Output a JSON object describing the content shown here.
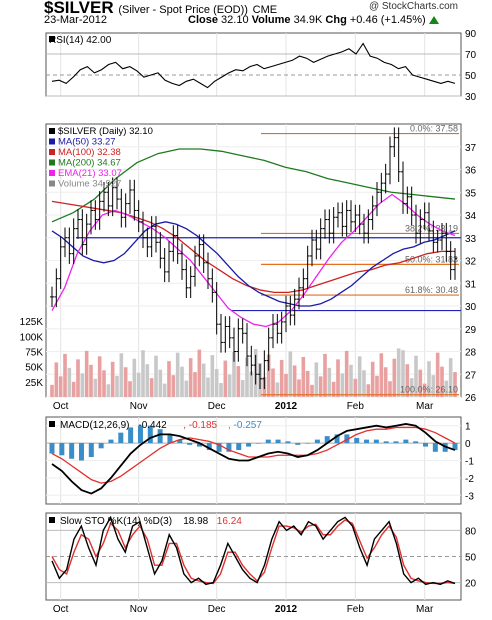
{
  "header": {
    "symbol": "$SILVER",
    "subtitle": "(Silver - Spot Price (EOD))",
    "exchange": "CME",
    "date": "23-Mar-2012",
    "close_label": "Close",
    "close_value": "32.10",
    "volume_label": "Volume",
    "volume_value": "34.9K",
    "chg_label": "Chg",
    "chg_value": "+0.46 (+1.45%)",
    "brand": "@ StockCharts.com"
  },
  "colors": {
    "price_bars": "#000000",
    "ma50": "#1a1aa8",
    "ma100": "#cc2222",
    "ma200": "#1f7a1f",
    "ema21": "#ee22ee",
    "volume_up": "#e8a0a0",
    "volume_down": "#c8c8c8",
    "fib": "#e07020",
    "support": "#2222bb",
    "macd_line": "#000000",
    "macd_signal": "#e03030",
    "macd_hist": "#3a8ec8"
  },
  "chart_data": [
    {
      "type": "line",
      "panel": "rsi",
      "legend": "RSI(14) 42.00",
      "ylim": [
        30,
        90
      ],
      "yticks": [
        30,
        50,
        70,
        90
      ],
      "reference_lines": [
        30,
        50,
        70
      ],
      "series": [
        {
          "values": [
            44,
            45,
            42,
            48,
            55,
            58,
            52,
            55,
            60,
            62,
            56,
            58,
            54,
            48,
            50,
            52,
            45,
            42,
            40,
            44,
            46,
            42,
            38,
            44,
            48,
            52,
            55,
            54,
            58,
            60,
            56,
            58,
            60,
            62,
            64,
            68,
            66,
            62,
            65,
            68,
            70,
            72,
            75,
            70,
            80,
            68,
            66,
            62,
            60,
            56,
            58,
            50,
            48,
            46,
            44,
            42,
            44,
            42
          ]
        }
      ]
    },
    {
      "type": "candlestick",
      "panel": "price",
      "legend": [
        {
          "label": "$SILVER (Daily) 32.10",
          "color": "#000000"
        },
        {
          "label": "MA(50) 33.27",
          "color": "#1a1aa8"
        },
        {
          "label": "MA(100) 32.38",
          "color": "#cc2222"
        },
        {
          "label": "MA(200) 34.67",
          "color": "#1f7a1f"
        },
        {
          "label": "EMA(21) 33.07",
          "color": "#ee22ee"
        },
        {
          "label": "Volume 34,927",
          "color": "#888888"
        }
      ],
      "ylim": [
        26,
        38
      ],
      "yticks": [
        26,
        27,
        28,
        29,
        30,
        31,
        32,
        33,
        34,
        35,
        36,
        37
      ],
      "x_tick_labels": [
        "Oct",
        "Nov",
        "Dec",
        "2012",
        "Feb",
        "Mar"
      ],
      "x_tick_bars": [
        2,
        20,
        38,
        54,
        70,
        86
      ],
      "volume_ticks": [
        "125K",
        "100K",
        "75K",
        "50K",
        "25K"
      ],
      "volume_tick_values": [
        125000,
        100000,
        75000,
        50000,
        25000
      ],
      "closes": [
        30.4,
        31.2,
        32.6,
        33.0,
        32.3,
        33.4,
        33.8,
        32.7,
        33.6,
        34.2,
        33.8,
        34.6,
        35.0,
        34.4,
        35.2,
        34.7,
        33.9,
        34.5,
        35.1,
        34.2,
        33.7,
        33.0,
        32.6,
        33.5,
        32.8,
        32.1,
        31.5,
        32.4,
        33.1,
        32.3,
        31.6,
        30.8,
        31.3,
        32.2,
        32.7,
        31.9,
        31.2,
        30.6,
        29.2,
        28.4,
        29.1,
        28.6,
        28.0,
        29.0,
        28.8,
        27.8,
        27.4,
        27.0,
        26.8,
        27.6,
        28.6,
        29.2,
        28.8,
        29.3,
        30.0,
        29.6,
        30.3,
        30.8,
        31.2,
        32.2,
        32.9,
        32.5,
        33.4,
        33.8,
        33.2,
        33.9,
        34.1,
        33.5,
        34.2,
        33.7,
        34.0,
        33.6,
        33.2,
        33.8,
        34.4,
        35.0,
        35.4,
        35.8,
        37.0,
        37.4,
        35.9,
        34.5,
        34.8,
        34.0,
        33.2,
        33.8,
        34.1,
        33.3,
        32.8,
        32.9,
        33.2,
        32.4,
        31.6,
        32.1
      ],
      "highs_offset": 0.45,
      "lows_offset": 0.45,
      "ma50": [
        33.3,
        33.0,
        32.6,
        32.2,
        32.0,
        31.9,
        32.0,
        32.3,
        32.8,
        33.3,
        33.6,
        33.7,
        33.6,
        33.4,
        33.1,
        32.7,
        32.3,
        31.8,
        31.3,
        30.9,
        30.6,
        30.4,
        30.2,
        30.1,
        30.0,
        30.0,
        30.1,
        30.3,
        30.6,
        30.9,
        31.3,
        31.7,
        32.0,
        32.3,
        32.5,
        32.6,
        32.8,
        32.9,
        33.1,
        33.3
      ],
      "ma100": [
        34.6,
        34.5,
        34.4,
        34.3,
        34.2,
        34.1,
        33.9,
        33.7,
        33.4,
        33.0,
        32.5,
        32.0,
        31.6,
        31.2,
        30.9,
        30.7,
        30.6,
        30.6,
        30.7,
        30.9,
        31.1,
        31.3,
        31.5,
        31.6,
        31.8,
        31.9,
        32.1,
        32.3,
        32.4,
        32.4
      ],
      "ma200": [
        33.7,
        34.1,
        34.7,
        35.6,
        36.3,
        36.7,
        36.9,
        36.9,
        36.8,
        36.6,
        36.4,
        36.1,
        35.9,
        35.6,
        35.4,
        35.2,
        35.0,
        34.9,
        34.8,
        34.7
      ],
      "ema21": [
        29.8,
        30.8,
        32.3,
        33.3,
        34.0,
        34.2,
        34.0,
        33.7,
        33.4,
        33.0,
        32.5,
        32.0,
        31.3,
        30.6,
        29.9,
        29.5,
        29.2,
        29.1,
        29.3,
        29.8,
        30.5,
        31.3,
        32.1,
        32.8,
        33.3,
        33.9,
        34.5,
        34.9,
        34.5,
        34.0,
        33.6,
        33.3,
        33.1
      ],
      "fib_levels": [
        {
          "label": "0.0%: 37.58",
          "value": 37.58
        },
        {
          "label": "38.2%: 33.19",
          "value": 33.19
        },
        {
          "label": "50.0%: 31.83",
          "value": 31.83
        },
        {
          "label": "61.8%: 30.48",
          "value": 30.48
        },
        {
          "label": "100.0%: 26.10",
          "value": 26.1
        }
      ],
      "support_lines": [
        33.0,
        29.8
      ]
    },
    {
      "type": "line",
      "panel": "macd",
      "legend": [
        {
          "label": "MACD(12,26,9)",
          "color": "#000000"
        },
        {
          "label": "-0.442",
          "color": "#000000"
        },
        {
          "label": "-0.185",
          "color": "#e03030"
        },
        {
          "label": "-0.257",
          "color": "#3a8ec8"
        }
      ],
      "ylim": [
        -3.5,
        1.5
      ],
      "yticks": [
        -3,
        -2,
        -1,
        0,
        1
      ],
      "macd": [
        -1.2,
        -1.6,
        -2.2,
        -2.7,
        -2.9,
        -2.6,
        -2.0,
        -1.3,
        -0.6,
        -0.1,
        0.3,
        0.5,
        0.5,
        0.4,
        0.2,
        0.0,
        -0.3,
        -0.6,
        -0.9,
        -1.0,
        -1.0,
        -0.8,
        -0.6,
        -0.5,
        -0.6,
        -0.8,
        -0.7,
        -0.4,
        0.0,
        0.4,
        0.7,
        0.8,
        0.9,
        1.0,
        0.9,
        1.0,
        1.1,
        1.0,
        0.6,
        0.1,
        -0.2,
        -0.4
      ],
      "signal": [
        -0.6,
        -0.9,
        -1.3,
        -1.7,
        -2.1,
        -2.3,
        -2.2,
        -1.9,
        -1.5,
        -1.1,
        -0.7,
        -0.3,
        0.0,
        0.2,
        0.3,
        0.2,
        0.1,
        -0.1,
        -0.4,
        -0.6,
        -0.8,
        -0.8,
        -0.8,
        -0.7,
        -0.7,
        -0.7,
        -0.7,
        -0.6,
        -0.4,
        -0.1,
        0.2,
        0.5,
        0.7,
        0.8,
        0.8,
        0.9,
        0.9,
        0.9,
        0.8,
        0.6,
        0.3,
        0.0
      ]
    },
    {
      "type": "line",
      "panel": "stochastic",
      "legend": [
        {
          "label": "Slow STO %K(14) %D(3)",
          "color": "#000000"
        },
        {
          "label": "18.98",
          "color": "#000000"
        },
        {
          "label": "16.24",
          "color": "#e03030"
        }
      ],
      "ylim": [
        0,
        100
      ],
      "yticks": [
        20,
        50,
        80
      ],
      "reference_lines": [
        20,
        50,
        80
      ],
      "k": [
        45,
        25,
        35,
        70,
        85,
        60,
        40,
        80,
        95,
        70,
        55,
        85,
        90,
        60,
        30,
        45,
        75,
        60,
        30,
        20,
        25,
        18,
        20,
        40,
        65,
        50,
        35,
        25,
        20,
        40,
        70,
        90,
        80,
        85,
        75,
        90,
        85,
        70,
        80,
        90,
        95,
        85,
        60,
        40,
        70,
        80,
        90,
        65,
        30,
        20,
        25,
        18,
        20,
        18,
        22,
        19
      ],
      "d": [
        50,
        35,
        30,
        55,
        75,
        70,
        50,
        65,
        88,
        80,
        60,
        75,
        85,
        70,
        40,
        40,
        65,
        65,
        40,
        25,
        22,
        20,
        19,
        30,
        55,
        55,
        40,
        30,
        22,
        32,
        60,
        85,
        85,
        83,
        78,
        85,
        87,
        75,
        75,
        85,
        92,
        88,
        68,
        48,
        60,
        75,
        85,
        72,
        40,
        25,
        22,
        20,
        19,
        19,
        20,
        19
      ]
    }
  ]
}
